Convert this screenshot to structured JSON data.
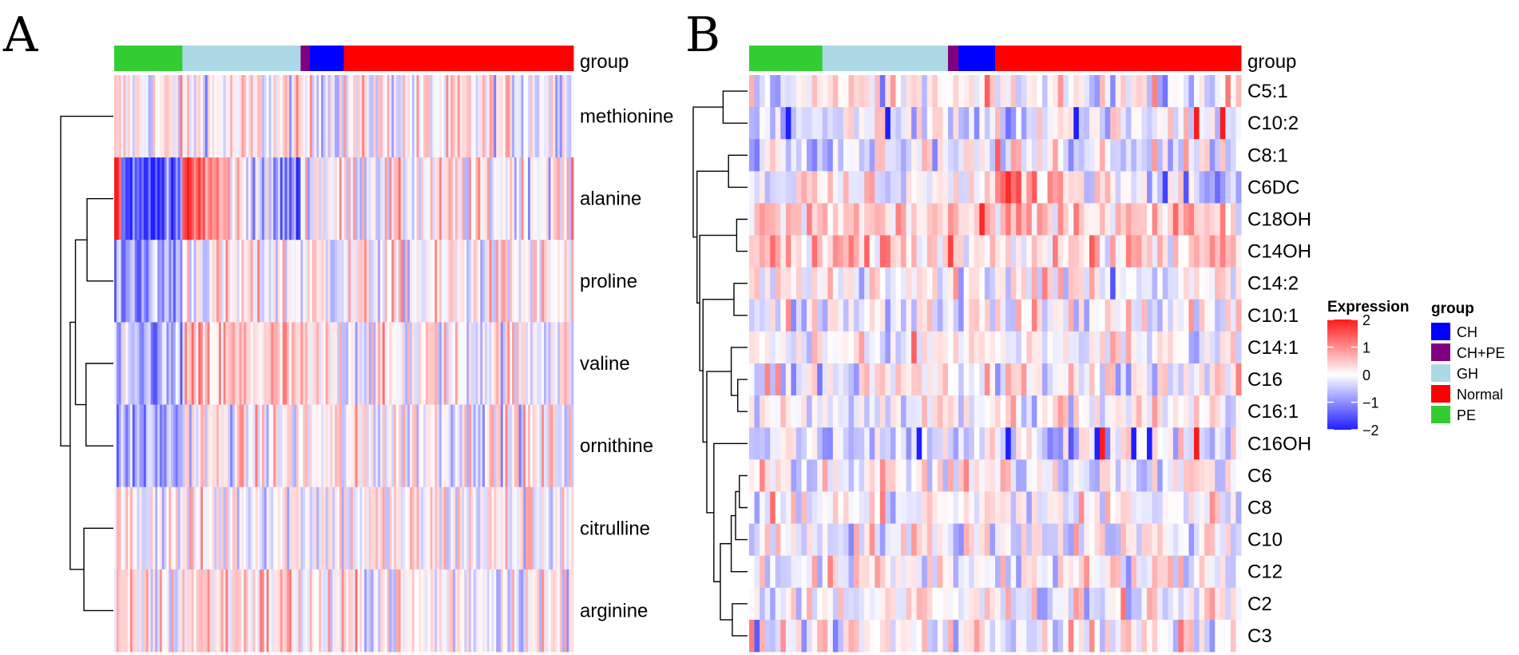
{
  "chart_data": [
    {
      "type": "heatmap",
      "panel_label": "A",
      "annotation_row_label": "group",
      "group_bar": [
        {
          "group": "PE",
          "samples": 30
        },
        {
          "group": "GH",
          "samples": 52
        },
        {
          "group": "CH+PE",
          "samples": 4
        },
        {
          "group": "CH",
          "samples": 15
        },
        {
          "group": "Normal",
          "samples": 101
        }
      ],
      "rows": [
        "methionine",
        "alanine",
        "proline",
        "valine",
        "ornithine",
        "citrulline",
        "arginine"
      ],
      "row_dendrogram_order": [
        "methionine",
        "alanine",
        "proline",
        "valine",
        "ornithine",
        "citrulline",
        "arginine"
      ],
      "value_range": [
        -2,
        2
      ]
    },
    {
      "type": "heatmap",
      "panel_label": "B",
      "annotation_row_label": "group",
      "group_bar": [
        {
          "group": "PE",
          "samples": 14
        },
        {
          "group": "GH",
          "samples": 24
        },
        {
          "group": "CH+PE",
          "samples": 2
        },
        {
          "group": "CH",
          "samples": 7
        },
        {
          "group": "Normal",
          "samples": 47
        }
      ],
      "rows": [
        "C5:1",
        "C10:2",
        "C8:1",
        "C6DC",
        "C18OH",
        "C14OH",
        "C14:2",
        "C10:1",
        "C14:1",
        "C16",
        "C16:1",
        "C16OH",
        "C6",
        "C8",
        "C10",
        "C12",
        "C2",
        "C3"
      ],
      "value_range": [
        -2,
        2
      ]
    }
  ],
  "legend": {
    "expression": {
      "title": "Expression",
      "ticks": [
        {
          "value": 2,
          "label": "2"
        },
        {
          "value": 1,
          "label": "1"
        },
        {
          "value": 0,
          "label": "0"
        },
        {
          "value": -1,
          "label": "−1"
        },
        {
          "value": -2,
          "label": "−2"
        }
      ],
      "colors": {
        "low": "#1f1fff",
        "mid": "#ffffff",
        "high": "#ff1a1a"
      }
    },
    "group": {
      "title": "group",
      "items": [
        {
          "label": "CH",
          "color": "#0000ff"
        },
        {
          "label": "CH+PE",
          "color": "#800080"
        },
        {
          "label": "GH",
          "color": "#add8e6"
        },
        {
          "label": "Normal",
          "color": "#ff0000"
        },
        {
          "label": "PE",
          "color": "#32cd32"
        }
      ]
    }
  }
}
